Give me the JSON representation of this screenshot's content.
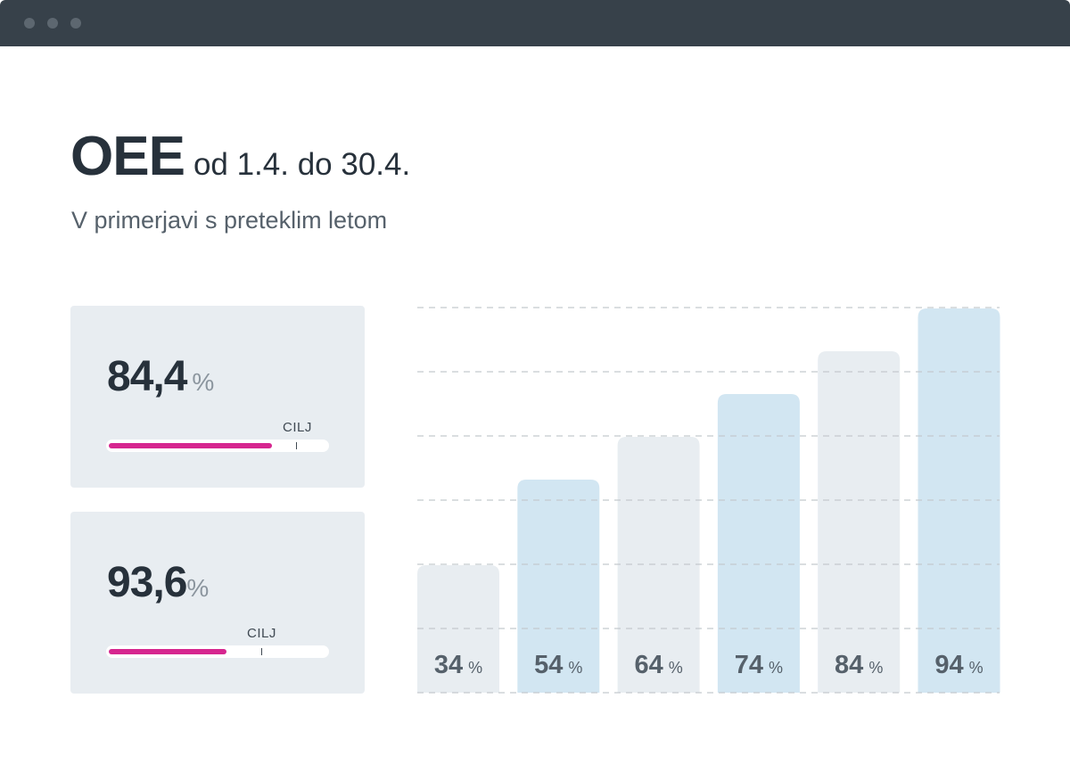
{
  "header": {
    "title": "OEE",
    "date_range": "od 1.4. do 30.4.",
    "subtitle": "V primerjavi s preteklim letom"
  },
  "cards": [
    {
      "value": "84,4",
      "unit": "%",
      "target_label": "CILJ",
      "progress": 0.75,
      "target": 0.86
    },
    {
      "value": "93,6",
      "unit": "%",
      "target_label": "CILJ",
      "progress": 0.54,
      "target": 0.7
    }
  ],
  "colors": {
    "titlebar": "#37414a",
    "accent": "#d6268f",
    "bar_gray": "#e8edf1",
    "bar_blue": "#d2e6f2"
  },
  "chart_data": {
    "type": "bar",
    "categories": [
      "",
      "",
      "",
      "",
      "",
      ""
    ],
    "values": [
      34,
      54,
      64,
      74,
      84,
      94
    ],
    "labels": [
      "34",
      "54",
      "64",
      "74",
      "84",
      "94"
    ],
    "unit": "%",
    "bar_colors": [
      "gray",
      "blue",
      "gray",
      "blue",
      "gray",
      "blue"
    ],
    "grid": true,
    "grid_style": "dashed"
  }
}
